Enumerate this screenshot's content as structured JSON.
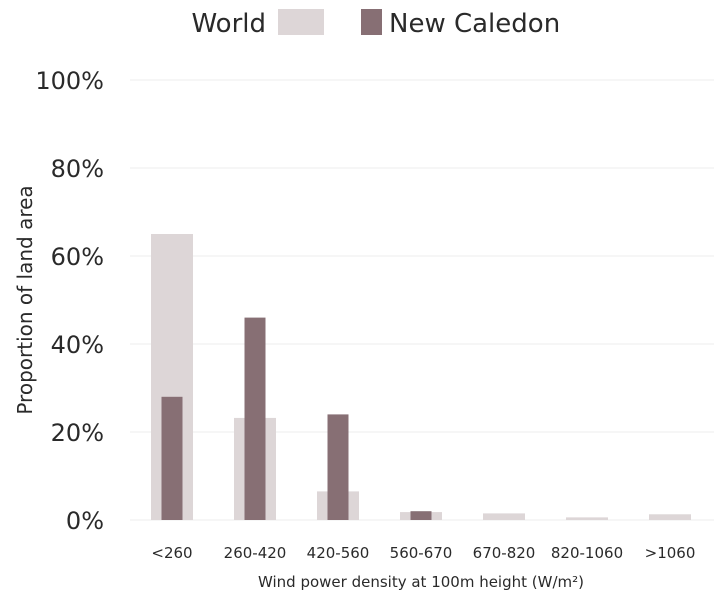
{
  "chart_data": {
    "type": "bar",
    "categories": [
      "<260",
      "260-420",
      "420-560",
      "560-670",
      "670-820",
      "820-1060",
      ">1060"
    ],
    "series": [
      {
        "name": "World",
        "values": [
          65,
          23.2,
          6.5,
          1.8,
          1.5,
          0.6,
          1.3
        ],
        "color": "#ddd6d7"
      },
      {
        "name": "New Caledon",
        "values": [
          28,
          46,
          24,
          2,
          0,
          0,
          0
        ],
        "color": "#876f74"
      }
    ],
    "ylim": [
      0,
      100
    ],
    "yticks": [
      {
        "value": 0,
        "label": "0%"
      },
      {
        "value": 20,
        "label": "20%"
      },
      {
        "value": 40,
        "label": "40%"
      },
      {
        "value": 60,
        "label": "60%"
      },
      {
        "value": 80,
        "label": "80%"
      },
      {
        "value": 100,
        "label": "100%"
      }
    ],
    "xlabel": "Wind power density at 100m height (W/m²)",
    "ylabel": "Proportion of land area",
    "grid": true,
    "legend_placement": "top-center"
  }
}
